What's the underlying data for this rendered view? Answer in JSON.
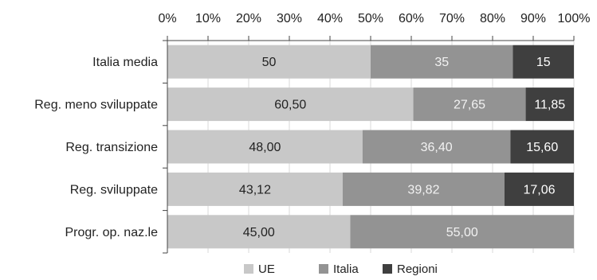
{
  "chart_data": {
    "type": "bar",
    "orientation": "horizontal",
    "stacked": "percent",
    "title": "",
    "xlabel": "",
    "ylabel": "",
    "xlim": [
      0,
      100
    ],
    "x_ticks": [
      "0%",
      "10%",
      "20%",
      "30%",
      "40%",
      "50%",
      "60%",
      "70%",
      "80%",
      "90%",
      "100%"
    ],
    "x_axis_position": "top",
    "grid": true,
    "legend_position": "bottom",
    "categories": [
      "Italia media",
      "Reg. meno sviluppate",
      "Reg. transizione",
      "Reg. sviluppate",
      "Progr. op. naz.le"
    ],
    "series": [
      {
        "name": "UE",
        "color": "#c8c8c8",
        "label_color": "#222222",
        "values": [
          50,
          60.5,
          48.0,
          43.12,
          45.0
        ],
        "labels": [
          "50",
          "60,50",
          "48,00",
          "43,12",
          "45,00"
        ]
      },
      {
        "name": "Italia",
        "color": "#939393",
        "label_color": "#f2f2f2",
        "values": [
          35,
          27.65,
          36.4,
          39.82,
          55.0
        ],
        "labels": [
          "35",
          "27,65",
          "36,40",
          "39,82",
          "55,00"
        ]
      },
      {
        "name": "Regioni",
        "color": "#3f3f3f",
        "label_color": "#ffffff",
        "values": [
          15,
          11.85,
          15.6,
          17.06,
          0
        ],
        "labels": [
          "15",
          "11,85",
          "15,60",
          "17,06",
          ""
        ]
      }
    ]
  }
}
